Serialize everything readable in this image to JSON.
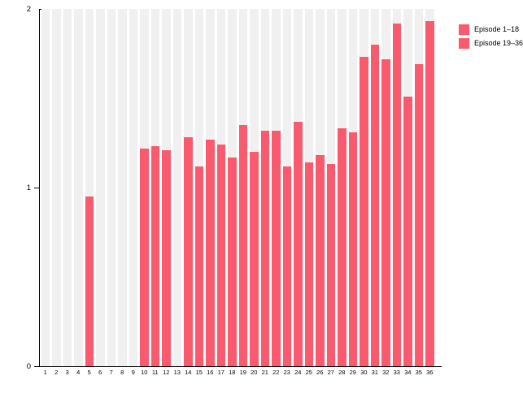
{
  "chart_data": {
    "type": "bar",
    "title": "",
    "xlabel": "",
    "ylabel": "",
    "ylim": [
      0,
      2
    ],
    "yticks": [
      "0",
      "1",
      "2"
    ],
    "grid": "off",
    "plot_background": "vertical-stripes",
    "legend_position": "top-right",
    "categories": [
      "1",
      "2",
      "3",
      "4",
      "5",
      "6",
      "7",
      "8",
      "9",
      "10",
      "11",
      "12",
      "13",
      "14",
      "15",
      "16",
      "17",
      "18",
      "19",
      "20",
      "21",
      "22",
      "23",
      "24",
      "25",
      "26",
      "27",
      "28",
      "29",
      "30",
      "31",
      "32",
      "33",
      "34",
      "35",
      "36"
    ],
    "series": [
      {
        "name": "Episode 1–18",
        "color": "#fa5a6e",
        "values": [
          0,
          0,
          0,
          0,
          0.95,
          0,
          0,
          0,
          0,
          1.22,
          1.23,
          1.21,
          0,
          1.28,
          1.12,
          1.27,
          1.24,
          1.17
        ]
      },
      {
        "name": "Episode 19–36",
        "color": "#fa5a6e",
        "values": [
          1.35,
          1.2,
          1.32,
          1.32,
          1.12,
          1.37,
          1.14,
          1.18,
          1.13,
          1.33,
          1.31,
          1.73,
          1.8,
          1.72,
          1.92,
          1.51,
          1.69,
          1.93
        ]
      }
    ]
  },
  "colors": {
    "bar": "#fa5a6e",
    "stripe": "#f0f0f0",
    "axis": "#000000",
    "background": "#ffffff"
  }
}
